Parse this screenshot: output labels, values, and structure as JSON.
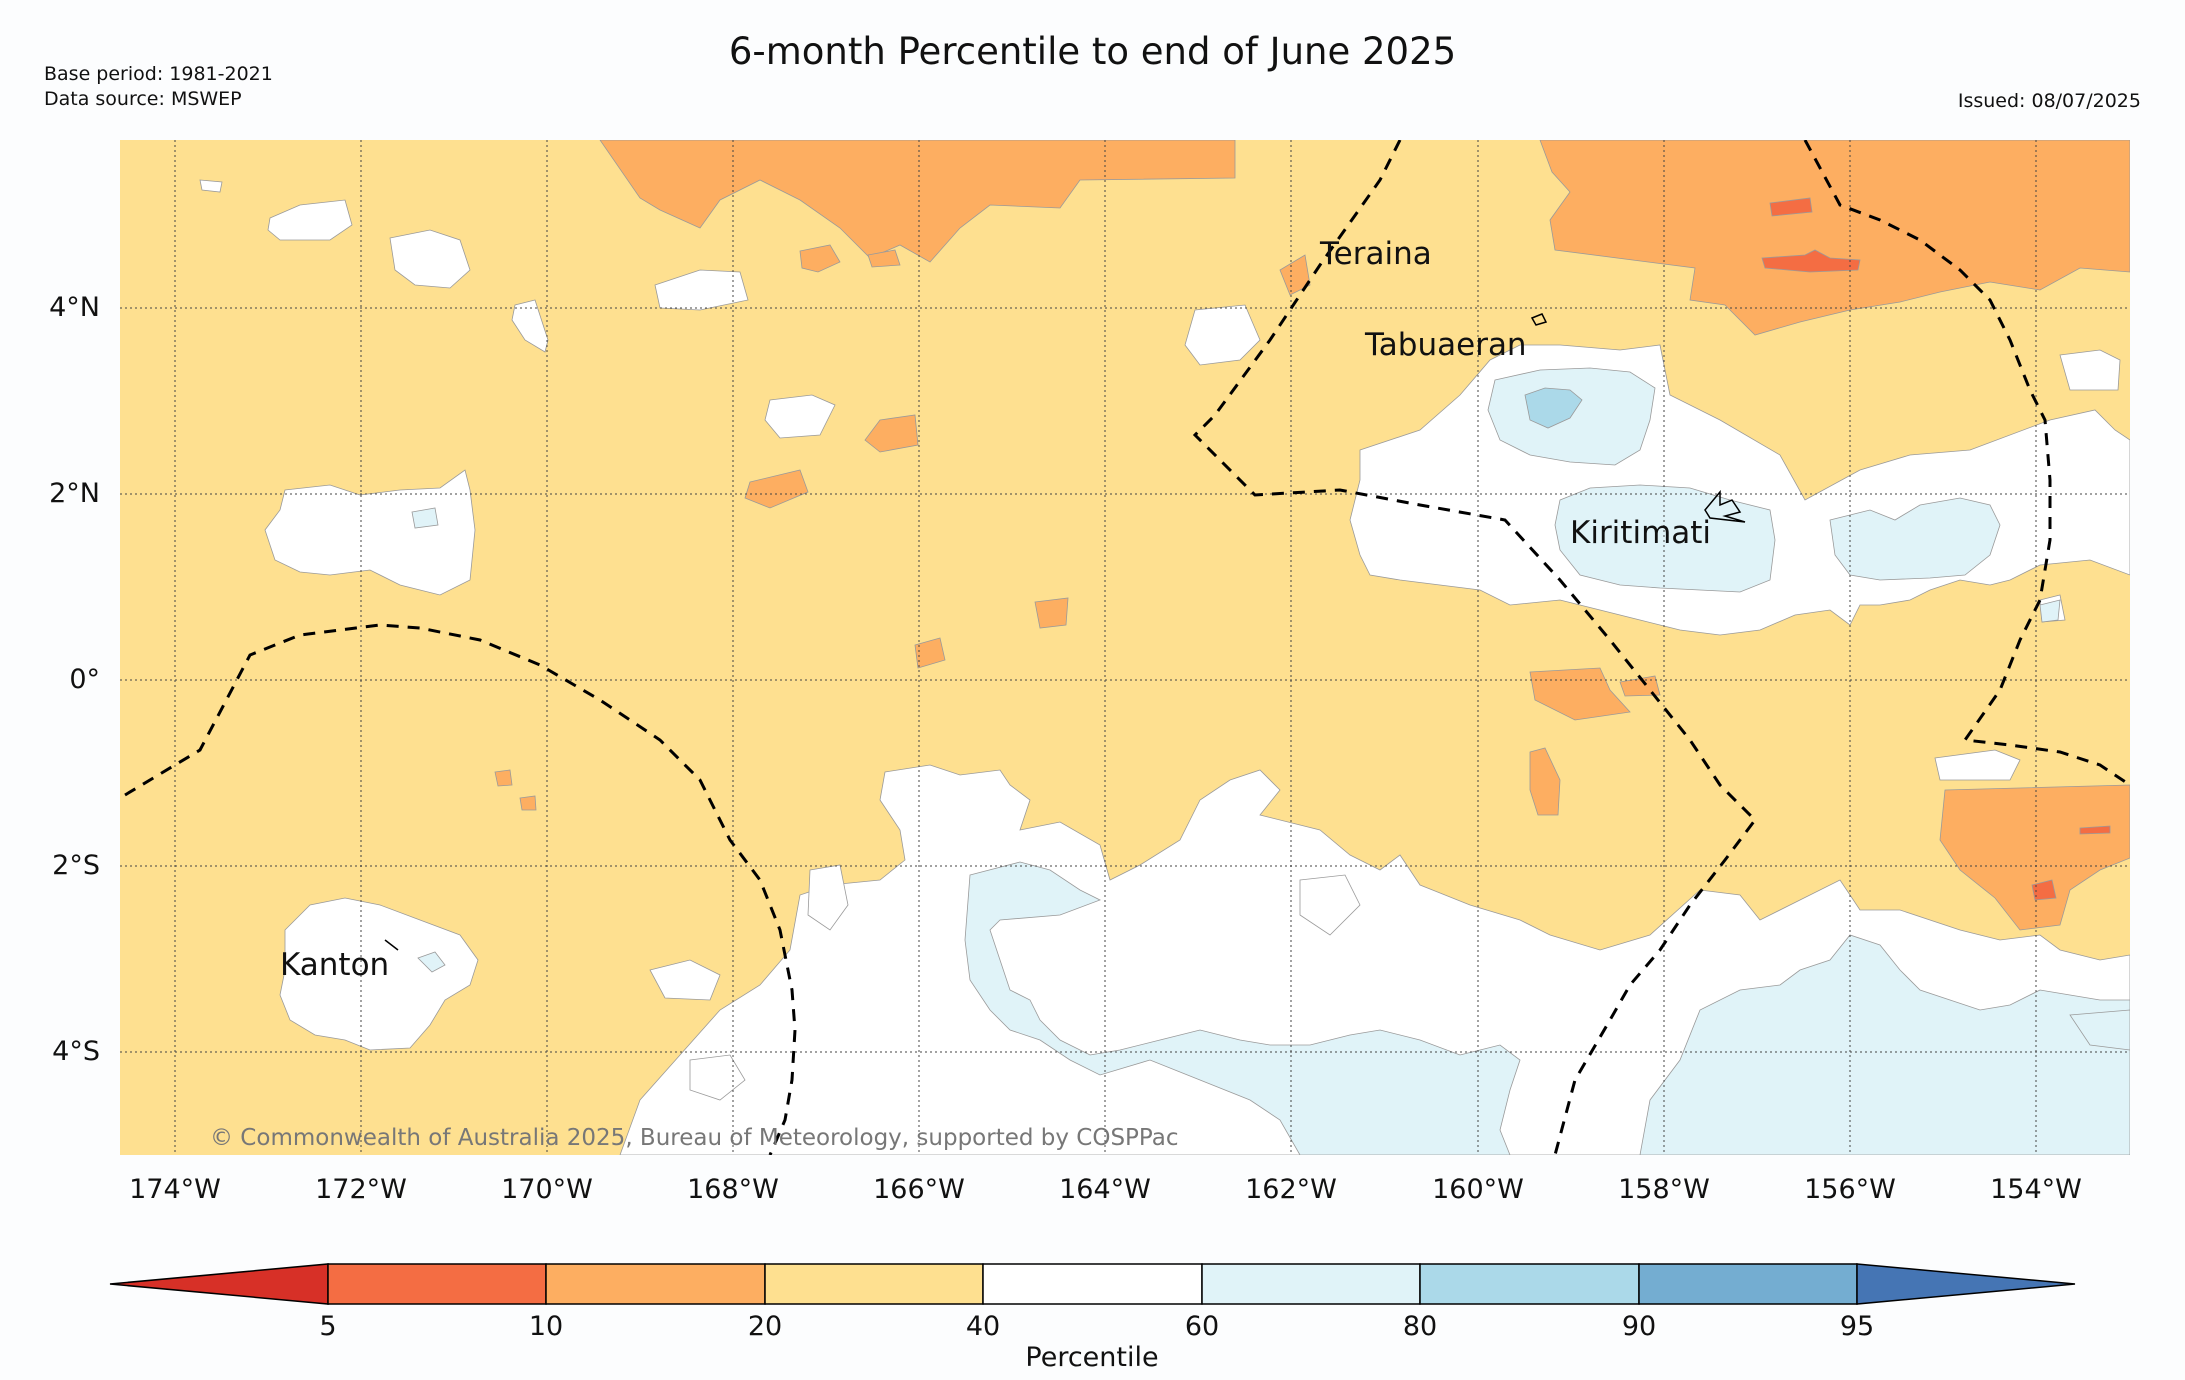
{
  "title": "6-month Percentile to end of June 2025",
  "meta": {
    "base_period": "Base period: 1981-2021",
    "data_source": "Data source: MSWEP",
    "issued": "Issued: 08/07/2025"
  },
  "copyright": "© Commonwealth of Australia 2025, Bureau of Meteorology, supported by COSPPac",
  "lat_labels": [
    "4°N",
    "2°N",
    "0°",
    "2°S",
    "4°S"
  ],
  "lon_labels": [
    "174°W",
    "172°W",
    "170°W",
    "168°W",
    "166°W",
    "164°W",
    "162°W",
    "160°W",
    "158°W",
    "156°W",
    "154°W"
  ],
  "places": [
    "Teraina",
    "Tabuaeran",
    "Kiritimati",
    "Kanton"
  ],
  "colorbar": {
    "label": "Percentile",
    "ticks": [
      "5",
      "10",
      "20",
      "40",
      "60",
      "80",
      "90",
      "95"
    ],
    "colors": {
      "below_5": "#d73027",
      "5_10": "#f46d43",
      "10_20": "#fdae61",
      "20_40": "#fee090",
      "40_60": "#ffffff",
      "60_80": "#e0f3f8",
      "80_90": "#abd9e9",
      "90_95": "#74add1",
      "above_95": "#4575b4"
    }
  }
}
